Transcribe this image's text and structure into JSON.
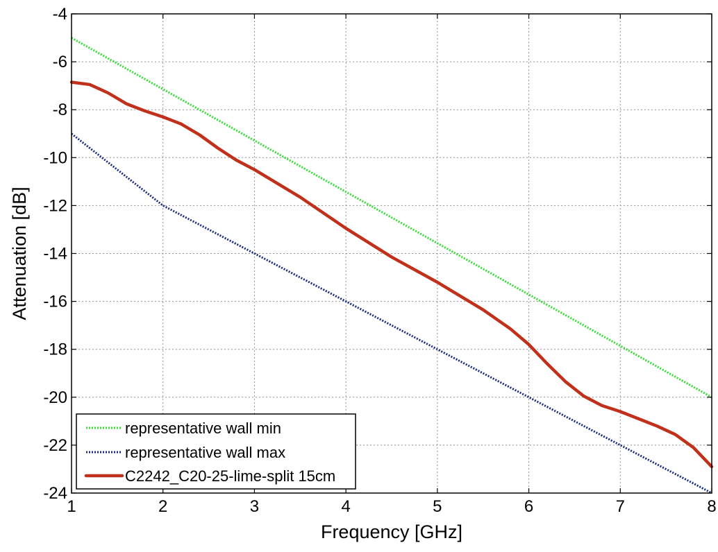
{
  "chart_data": {
    "type": "line",
    "xlabel": "Frequency [GHz]",
    "ylabel": "Attenuation [dB]",
    "xlim": [
      1,
      8
    ],
    "ylim": [
      -24,
      -4
    ],
    "xticks": [
      1,
      2,
      3,
      4,
      5,
      6,
      7,
      8
    ],
    "yticks": [
      -4,
      -6,
      -8,
      -10,
      -12,
      -14,
      -16,
      -18,
      -20,
      -22,
      -24
    ],
    "grid": true,
    "legend_position": "bottom-left",
    "series": [
      {
        "name": "representative wall min",
        "color": "#33dd33",
        "style": "dotted",
        "x": [
          1,
          8
        ],
        "y": [
          -5,
          -20
        ]
      },
      {
        "name": "representative wall max",
        "color": "#1a2a80",
        "style": "dotted",
        "x": [
          1,
          2,
          8
        ],
        "y": [
          -9,
          -12,
          -24
        ]
      },
      {
        "name": "C2242_C20-25-lime-split 15cm",
        "color": "#c0301a",
        "style": "solid",
        "x": [
          1,
          1.2,
          1.4,
          1.6,
          1.8,
          2,
          2.2,
          2.4,
          2.6,
          2.8,
          3,
          3.5,
          4,
          4.5,
          5,
          5.5,
          5.8,
          6,
          6.2,
          6.4,
          6.6,
          6.8,
          7,
          7.2,
          7.4,
          7.6,
          7.8,
          8
        ],
        "y": [
          -6.85,
          -6.95,
          -7.3,
          -7.75,
          -8.05,
          -8.3,
          -8.6,
          -9.05,
          -9.6,
          -10.1,
          -10.5,
          -11.65,
          -12.95,
          -14.15,
          -15.2,
          -16.35,
          -17.15,
          -17.8,
          -18.6,
          -19.35,
          -19.95,
          -20.35,
          -20.6,
          -20.9,
          -21.2,
          -21.55,
          -22.1,
          -22.9
        ]
      }
    ]
  }
}
